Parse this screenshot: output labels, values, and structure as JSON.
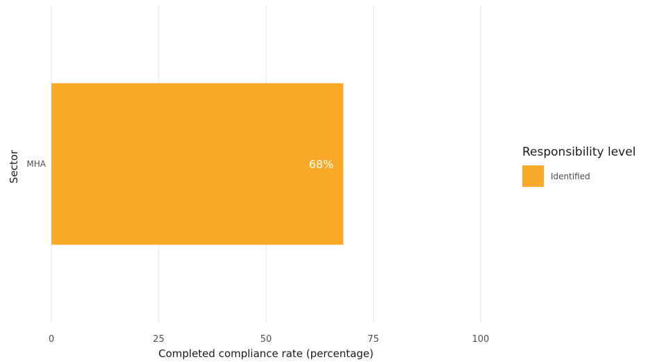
{
  "chart_data": {
    "type": "bar",
    "orientation": "horizontal",
    "categories": [
      "MHA"
    ],
    "series": [
      {
        "name": "Identified",
        "values": [
          68
        ],
        "color": "#F8A928"
      }
    ],
    "data_labels": [
      "68%"
    ],
    "xlabel": "Completed compliance rate (percentage)",
    "ylabel": "Sector",
    "xlim": [
      0,
      100
    ],
    "xticks": [
      0,
      25,
      50,
      75,
      100
    ],
    "grid": true,
    "legend": {
      "title": "Responsibility level",
      "position": "right"
    }
  }
}
